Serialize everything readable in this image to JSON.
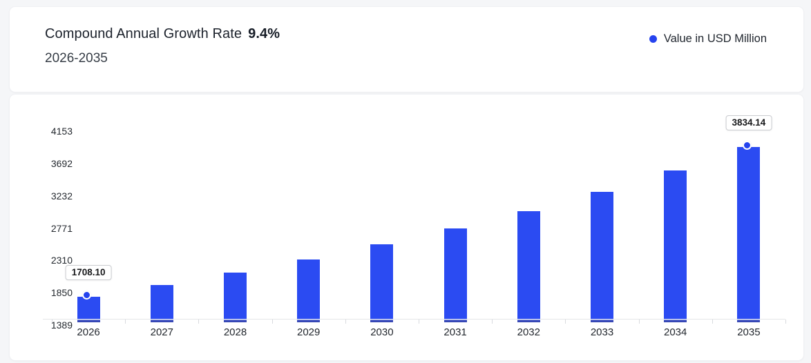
{
  "header": {
    "title": "Compound Annual Growth Rate",
    "cagr_value": "9.4%",
    "period": "2026-2035"
  },
  "legend": {
    "label": "Value in USD Million",
    "dot_color": "#2643ef"
  },
  "chart_data": {
    "type": "bar",
    "title": "Compound Annual Growth Rate 9.4%, 2026-2035",
    "series_name": "Value in USD Million",
    "categories": [
      "2026",
      "2027",
      "2028",
      "2029",
      "2030",
      "2031",
      "2032",
      "2033",
      "2034",
      "2035"
    ],
    "values": [
      1708.1,
      1868.66,
      2044.31,
      2236.48,
      2446.71,
      2676.7,
      2928.31,
      3203.57,
      3504.71,
      3834.14
    ],
    "values_estimated_indices": [
      1,
      2,
      3,
      4,
      5,
      6,
      7,
      8
    ],
    "point_labels": [
      {
        "index": 0,
        "text": "1708.10"
      },
      {
        "index": 9,
        "text": "3834.14"
      }
    ],
    "y_ticks": [
      1389,
      1850,
      2310,
      2771,
      3232,
      3692,
      4153
    ],
    "ylim": [
      1389,
      4153
    ],
    "xlabel": "",
    "ylabel": "Value in USD Million",
    "grid": false,
    "legend_position": "top-right",
    "bar_color": "#2b4bf2",
    "bar_base_color": "#3647b5",
    "marker_color": "#2443ee"
  }
}
